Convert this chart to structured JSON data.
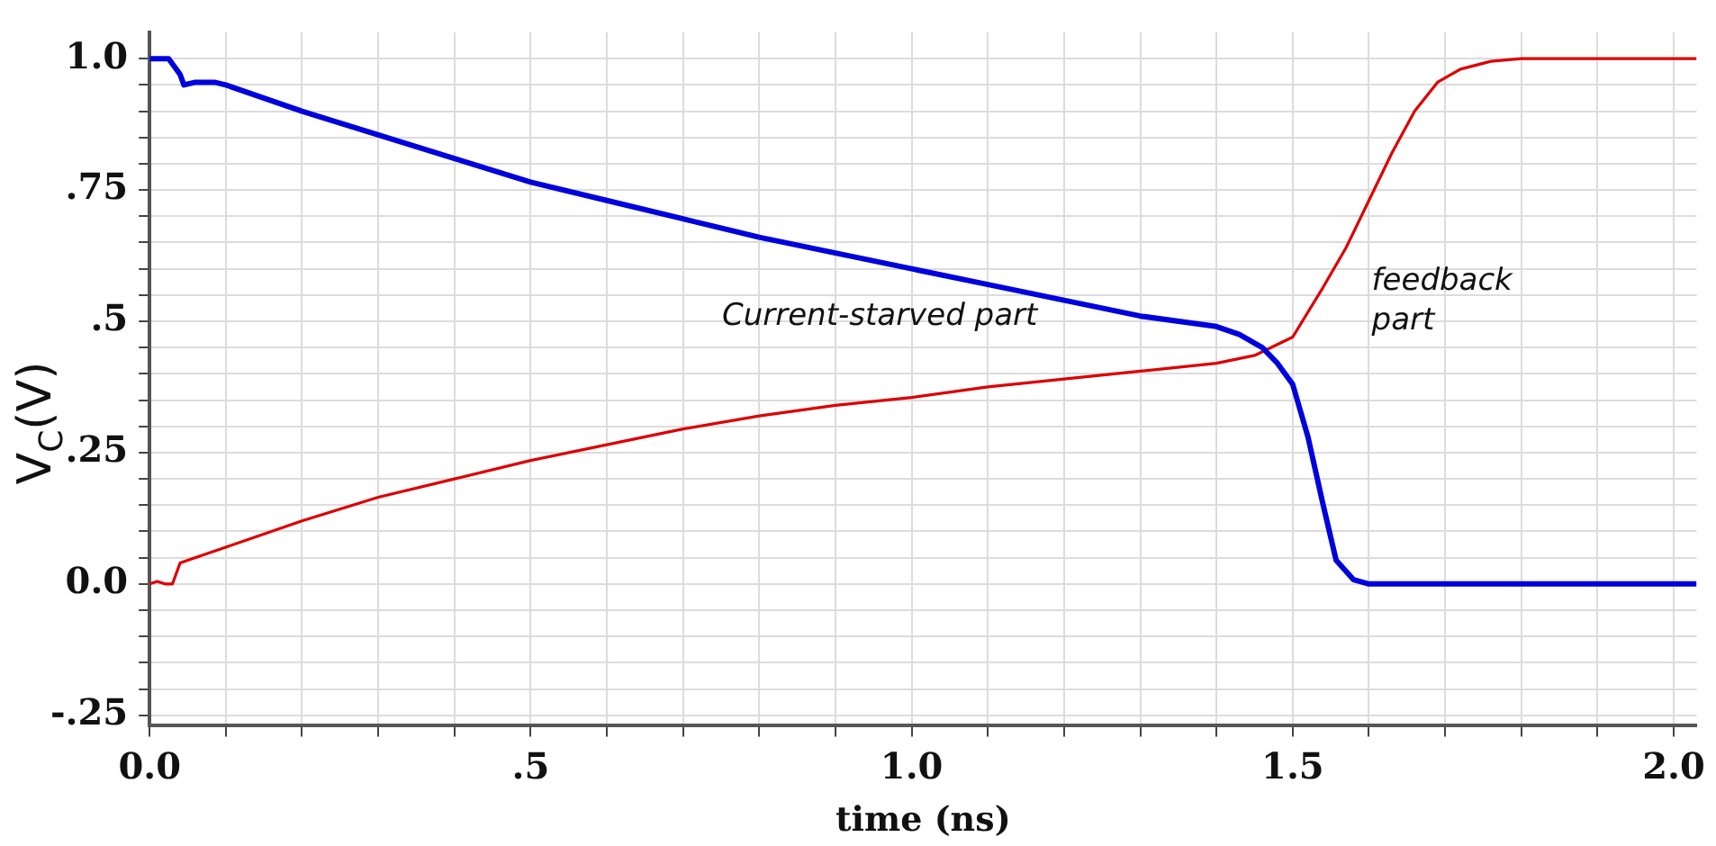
{
  "chart_data": {
    "type": "line",
    "xlabel": "time (ns)",
    "ylabel": "V$_{C}$(V)",
    "xlim": [
      0,
      2.03
    ],
    "ylim": [
      -0.27,
      1.05
    ],
    "xticks": [
      {
        "value": 0,
        "label": "0.0"
      },
      {
        "value": 0.1,
        "label": null
      },
      {
        "value": 0.2,
        "label": null
      },
      {
        "value": 0.3,
        "label": null
      },
      {
        "value": 0.4,
        "label": null
      },
      {
        "value": 0.5,
        "label": ".5"
      },
      {
        "value": 0.6,
        "label": null
      },
      {
        "value": 0.7,
        "label": null
      },
      {
        "value": 0.8,
        "label": null
      },
      {
        "value": 0.9,
        "label": null
      },
      {
        "value": 1,
        "label": "1.0"
      },
      {
        "value": 1.1,
        "label": null
      },
      {
        "value": 1.2,
        "label": null
      },
      {
        "value": 1.3,
        "label": null
      },
      {
        "value": 1.4,
        "label": null
      },
      {
        "value": 1.5,
        "label": "1.5"
      },
      {
        "value": 1.6,
        "label": null
      },
      {
        "value": 1.7,
        "label": null
      },
      {
        "value": 1.8,
        "label": null
      },
      {
        "value": 1.9,
        "label": null
      },
      {
        "value": 2,
        "label": "2.0"
      }
    ],
    "yticks": [
      {
        "value": -0.25,
        "label": "-.25"
      },
      {
        "value": -0.2,
        "label": null
      },
      {
        "value": -0.15,
        "label": null
      },
      {
        "value": -0.1,
        "label": null
      },
      {
        "value": -0.05,
        "label": null
      },
      {
        "value": 0,
        "label": "0.0"
      },
      {
        "value": 0.05,
        "label": null
      },
      {
        "value": 0.1,
        "label": null
      },
      {
        "value": 0.15,
        "label": null
      },
      {
        "value": 0.2,
        "label": null
      },
      {
        "value": 0.25,
        "label": ".25"
      },
      {
        "value": 0.3,
        "label": null
      },
      {
        "value": 0.35,
        "label": null
      },
      {
        "value": 0.4,
        "label": null
      },
      {
        "value": 0.45,
        "label": null
      },
      {
        "value": 0.5,
        "label": ".5"
      },
      {
        "value": 0.55,
        "label": null
      },
      {
        "value": 0.6,
        "label": null
      },
      {
        "value": 0.65,
        "label": null
      },
      {
        "value": 0.7,
        "label": null
      },
      {
        "value": 0.75,
        "label": ".75"
      },
      {
        "value": 0.8,
        "label": null
      },
      {
        "value": 0.85,
        "label": null
      },
      {
        "value": 0.9,
        "label": null
      },
      {
        "value": 0.95,
        "label": null
      },
      {
        "value": 1,
        "label": "1.0"
      }
    ],
    "grid": true,
    "marker": "none",
    "line_style": "solid",
    "annotations": [
      "Current-starved part",
      "feedback part"
    ],
    "series": [
      {
        "color": "#0000dd",
        "x": [
          0,
          0.025,
          0.04,
          0.045,
          0.06,
          0.085,
          0.1,
          0.2,
          0.3,
          0.4,
          0.5,
          0.6,
          0.7,
          0.8,
          0.9,
          1.0,
          1.1,
          1.2,
          1.3,
          1.4,
          1.43,
          1.46,
          1.48,
          1.5,
          1.51,
          1.52,
          1.54,
          1.557,
          1.58,
          1.6,
          2.03
        ],
        "values": [
          1,
          1,
          0.97,
          0.95,
          0.955,
          0.955,
          0.95,
          0.9,
          0.855,
          0.81,
          0.765,
          0.73,
          0.695,
          0.66,
          0.63,
          0.6,
          0.57,
          0.54,
          0.51,
          0.49,
          0.475,
          0.45,
          0.42,
          0.38,
          0.33,
          0.28,
          0.15,
          0.045,
          0.008,
          0,
          0
        ]
      },
      {
        "color": "#dd0000",
        "x": [
          0,
          0.01,
          0.02,
          0.03,
          0.04,
          0.05,
          0.1,
          0.2,
          0.3,
          0.4,
          0.5,
          0.6,
          0.7,
          0.8,
          0.9,
          1.0,
          1.1,
          1.2,
          1.3,
          1.4,
          1.45,
          1.5,
          1.54,
          1.57,
          1.6,
          1.63,
          1.66,
          1.69,
          1.72,
          1.76,
          1.8,
          2.03
        ],
        "values": [
          0,
          0.005,
          0,
          0,
          0.04,
          0.045,
          0.07,
          0.12,
          0.165,
          0.2,
          0.235,
          0.265,
          0.295,
          0.32,
          0.34,
          0.355,
          0.375,
          0.39,
          0.405,
          0.42,
          0.435,
          0.47,
          0.565,
          0.64,
          0.73,
          0.82,
          0.9,
          0.955,
          0.98,
          0.995,
          1,
          1
        ]
      }
    ]
  }
}
